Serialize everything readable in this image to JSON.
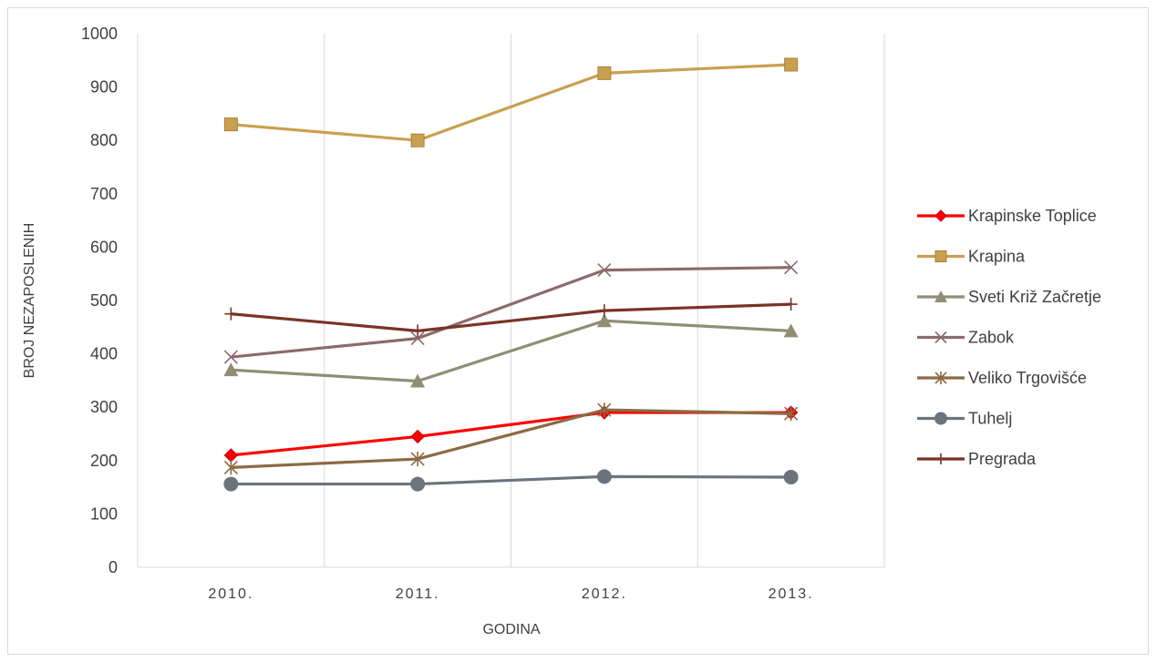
{
  "chart_data": {
    "type": "line",
    "categories": [
      "2010.",
      "2011.",
      "2012.",
      "2013."
    ],
    "xlabel": "GODINA",
    "ylabel": "BROJ NEZAPOSLENIH",
    "ylim": [
      0,
      1000
    ],
    "yticks": [
      "0",
      "100",
      "200",
      "300",
      "400",
      "500",
      "600",
      "700",
      "800",
      "900",
      "1000"
    ],
    "grid": "vertical",
    "legend_position": "right",
    "series": [
      {
        "name": "Krapinske Toplice",
        "values": [
          210,
          245,
          290,
          290
        ],
        "color": "#ff0000",
        "marker": "diamond"
      },
      {
        "name": "Krapina",
        "values": [
          830,
          800,
          926,
          942
        ],
        "color": "#c9a04f",
        "marker": "square"
      },
      {
        "name": "Sveti Križ Začretje",
        "values": [
          370,
          349,
          462,
          443
        ],
        "color": "#8f8f74",
        "marker": "triangle"
      },
      {
        "name": "Zabok",
        "values": [
          394,
          429,
          557,
          562
        ],
        "color": "#8c6b6b",
        "marker": "x"
      },
      {
        "name": "Veliko Trgovišće",
        "values": [
          187,
          203,
          295,
          288
        ],
        "color": "#8c6a44",
        "marker": "star"
      },
      {
        "name": "Tuhelj",
        "values": [
          156,
          156,
          170,
          169
        ],
        "color": "#6b737c",
        "marker": "circle"
      },
      {
        "name": "Pregrada",
        "values": [
          475,
          443,
          481,
          493
        ],
        "color": "#7a3326",
        "marker": "plus"
      }
    ]
  }
}
